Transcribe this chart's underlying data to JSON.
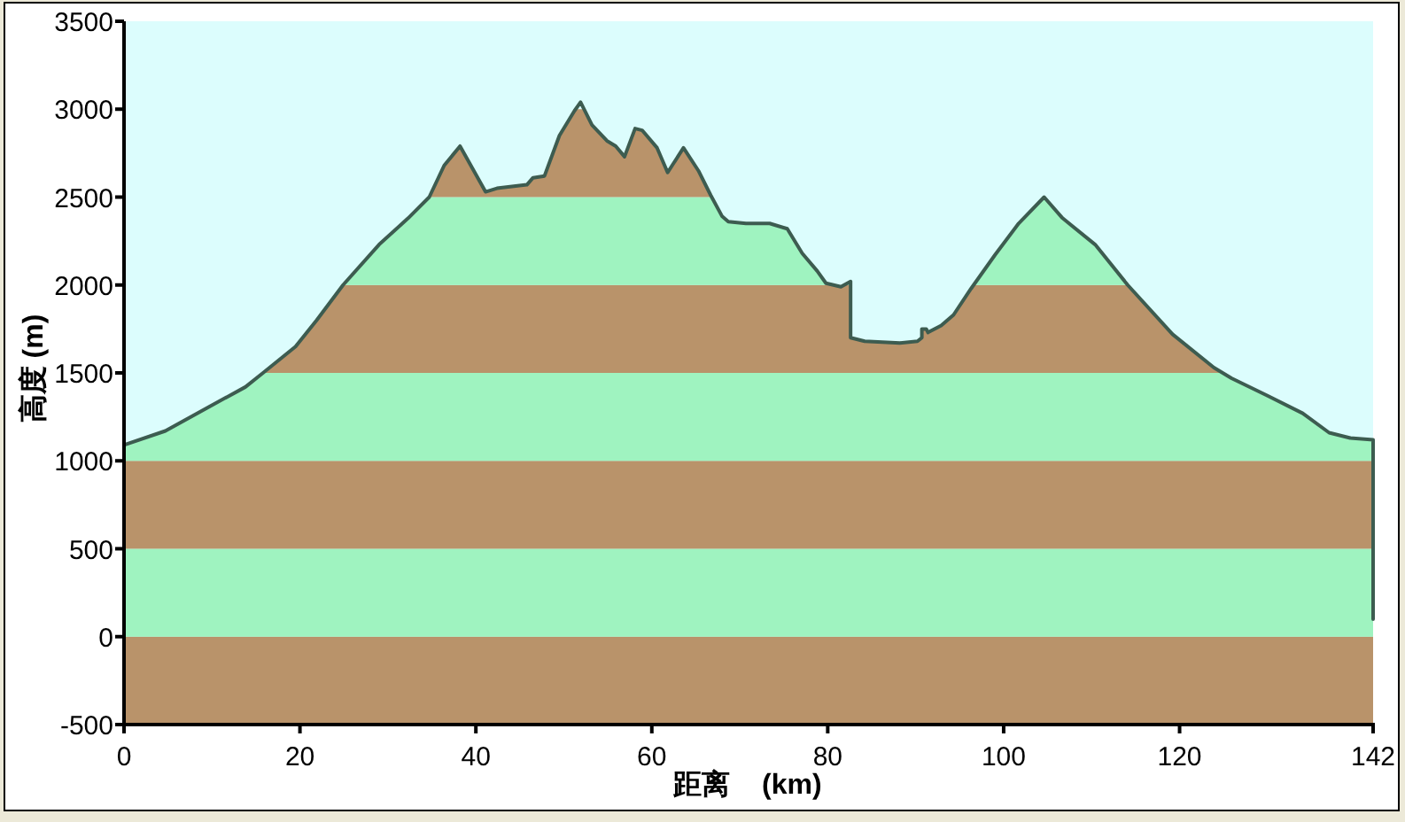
{
  "chart_data": {
    "type": "line",
    "xlabel": "距离    (km)",
    "ylabel": "高度 (m)",
    "x": [
      0,
      4.7,
      9.4,
      13.8,
      15.8,
      19.5,
      21.9,
      24.9,
      29.0,
      32.3,
      34.7,
      36.4,
      38.2,
      40.1,
      41.1,
      42.4,
      45.8,
      46.5,
      47.8,
      49.5,
      51.2,
      51.9,
      53.2,
      54.9,
      55.9,
      56.9,
      58.1,
      58.9,
      60.6,
      61.8,
      63.6,
      65.3,
      66.7,
      68.0,
      68.7,
      70.7,
      73.4,
      75.4,
      77.1,
      78.8,
      79.8,
      81.5,
      82.6,
      82.6,
      84.2,
      88.2,
      90.2,
      90.7,
      90.7,
      91.2,
      91.4,
      92.9,
      94.3,
      96.3,
      99.0,
      101.7,
      104.6,
      106.7,
      110.4,
      114.1,
      119.2,
      123.9,
      125.9,
      130.0,
      134.0,
      137.0,
      139.4,
      142,
      142
    ],
    "series": [
      {
        "color": "#3d5c50",
        "values": [
          1090,
          1170,
          1300,
          1420,
          1500,
          1650,
          1800,
          2000,
          2230,
          2380,
          2500,
          2680,
          2790,
          2620,
          2530,
          2550,
          2570,
          2610,
          2620,
          2850,
          2990,
          3040,
          2910,
          2820,
          2790,
          2730,
          2890,
          2880,
          2780,
          2640,
          2780,
          2650,
          2510,
          2390,
          2360,
          2350,
          2350,
          2320,
          2180,
          2080,
          2010,
          1990,
          2020,
          1700,
          1680,
          1670,
          1680,
          1700,
          1750,
          1750,
          1730,
          1770,
          1830,
          1980,
          2170,
          2350,
          2500,
          2380,
          2230,
          2000,
          1720,
          1530,
          1470,
          1370,
          1270,
          1160,
          1130,
          1120,
          100
        ]
      }
    ],
    "xlim": [
      0,
      142
    ],
    "ylim": [
      -500,
      3500
    ],
    "xticks": [
      0,
      20,
      40,
      60,
      80,
      100,
      120,
      142
    ],
    "yticks": [
      -500,
      0,
      500,
      1000,
      1500,
      2000,
      2500,
      3000,
      3500
    ],
    "bands": [
      {
        "axis": "y",
        "from": -500,
        "to": 0,
        "color": "#b9936a"
      },
      {
        "axis": "y",
        "from": 0,
        "to": 500,
        "color": "#9ff3c0"
      },
      {
        "axis": "y",
        "from": 500,
        "to": 1000,
        "color": "#b9936a"
      },
      {
        "axis": "y",
        "from": 1000,
        "to": 1500,
        "color": "#9ff3c0"
      },
      {
        "axis": "y",
        "from": 1500,
        "to": 2000,
        "color": "#b9936a"
      },
      {
        "axis": "y",
        "from": 2000,
        "to": 2500,
        "color": "#9ff3c0"
      },
      {
        "axis": "y",
        "from": 2500,
        "to": 3000,
        "color": "#b9936a"
      }
    ]
  }
}
